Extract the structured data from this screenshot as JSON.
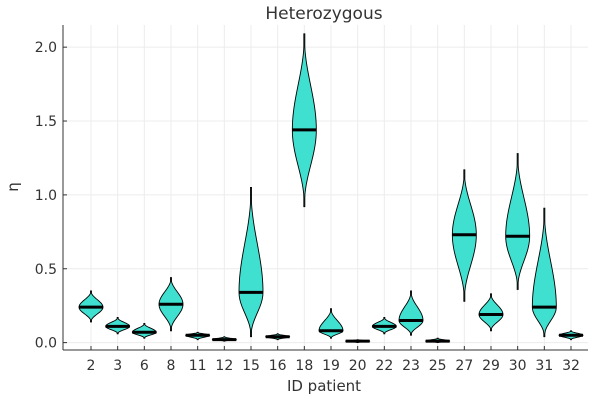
{
  "chart_data": {
    "type": "violin",
    "title": "Heterozygous",
    "xlabel": "ID patient",
    "ylabel": "η",
    "ylim": [
      -0.05,
      2.15
    ],
    "yticks": [
      0.0,
      0.5,
      1.0,
      1.5,
      2.0
    ],
    "ytick_labels": [
      "0.0",
      "0.5",
      "1.0",
      "1.5",
      "2.0"
    ],
    "grid": true,
    "colors": {
      "fill": "#40e0d0",
      "stroke": "#000000",
      "median": "#000000",
      "grid": "#ececec"
    },
    "categories": [
      "2",
      "3",
      "6",
      "8",
      "11",
      "12",
      "15",
      "16",
      "18",
      "19",
      "20",
      "22",
      "23",
      "25",
      "27",
      "29",
      "30",
      "31",
      "32"
    ],
    "series": [
      {
        "id": "2",
        "min": 0.14,
        "max": 0.35,
        "median": 0.24
      },
      {
        "id": "3",
        "min": 0.06,
        "max": 0.17,
        "median": 0.11
      },
      {
        "id": "6",
        "min": 0.03,
        "max": 0.13,
        "median": 0.07
      },
      {
        "id": "8",
        "min": 0.08,
        "max": 0.44,
        "median": 0.26
      },
      {
        "id": "11",
        "min": 0.02,
        "max": 0.07,
        "median": 0.05
      },
      {
        "id": "12",
        "min": 0.01,
        "max": 0.04,
        "median": 0.02
      },
      {
        "id": "15",
        "min": 0.04,
        "max": 1.05,
        "median": 0.34
      },
      {
        "id": "16",
        "min": 0.02,
        "max": 0.06,
        "median": 0.04
      },
      {
        "id": "18",
        "min": 0.92,
        "max": 2.09,
        "median": 1.44
      },
      {
        "id": "19",
        "min": 0.03,
        "max": 0.23,
        "median": 0.08
      },
      {
        "id": "20",
        "min": 0.0,
        "max": 0.02,
        "median": 0.01
      },
      {
        "id": "22",
        "min": 0.06,
        "max": 0.17,
        "median": 0.11
      },
      {
        "id": "23",
        "min": 0.05,
        "max": 0.35,
        "median": 0.15
      },
      {
        "id": "25",
        "min": 0.0,
        "max": 0.03,
        "median": 0.01
      },
      {
        "id": "27",
        "min": 0.28,
        "max": 1.17,
        "median": 0.73
      },
      {
        "id": "29",
        "min": 0.08,
        "max": 0.33,
        "median": 0.19
      },
      {
        "id": "30",
        "min": 0.36,
        "max": 1.28,
        "median": 0.72
      },
      {
        "id": "31",
        "min": 0.04,
        "max": 0.91,
        "median": 0.24
      },
      {
        "id": "32",
        "min": 0.02,
        "max": 0.08,
        "median": 0.05
      }
    ]
  }
}
